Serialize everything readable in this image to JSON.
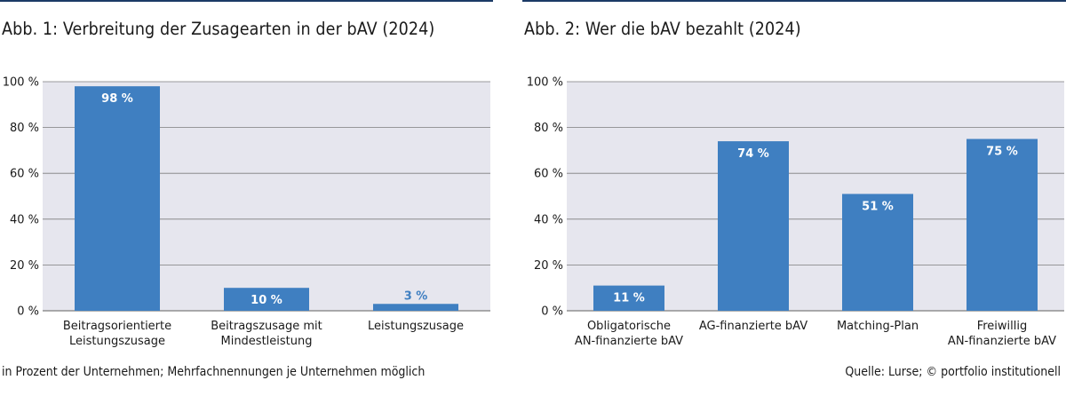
{
  "colors": {
    "bar": "#3f7fc1",
    "plot_background": "#e6e6ee",
    "gridline": "#7d7d7d",
    "title_rule": "#1b3a66"
  },
  "chart_data": [
    {
      "type": "bar",
      "title": "Abb. 1: Verbreitung der Zusagearten in der bAV (2024)",
      "categories": [
        [
          "Beitragsorientierte",
          "Leistungszusage"
        ],
        [
          "Beitragszusage mit",
          "Mindestleistung"
        ],
        [
          "Leistungszusage"
        ]
      ],
      "values": [
        98,
        10,
        3
      ],
      "value_labels": [
        "98 %",
        "10 %",
        "3 %"
      ],
      "yticks": [
        "0 %",
        "20 %",
        "40 %",
        "60 %",
        "80 %",
        "100 %"
      ],
      "ylim": [
        0,
        100
      ],
      "grid": true
    },
    {
      "type": "bar",
      "title": "Abb. 2: Wer die bAV bezahlt (2024)",
      "categories": [
        [
          "Obligatorische",
          "AN-finanzierte bAV"
        ],
        [
          "AG-finanzierte bAV"
        ],
        [
          "Matching-Plan"
        ],
        [
          "Freiwillig",
          "AN-finanzierte bAV"
        ]
      ],
      "values": [
        11,
        74,
        51,
        75
      ],
      "value_labels": [
        "11 %",
        "74 %",
        "51 %",
        "75 %"
      ],
      "yticks": [
        "0 %",
        "20 %",
        "40 %",
        "60 %",
        "80 %",
        "100 %"
      ],
      "ylim": [
        0,
        100
      ],
      "grid": true
    }
  ],
  "footnote": "in Prozent der Unternehmen; Mehrfachnennungen je Unternehmen möglich",
  "source": "Quelle: Lurse; © portfolio institutionell"
}
